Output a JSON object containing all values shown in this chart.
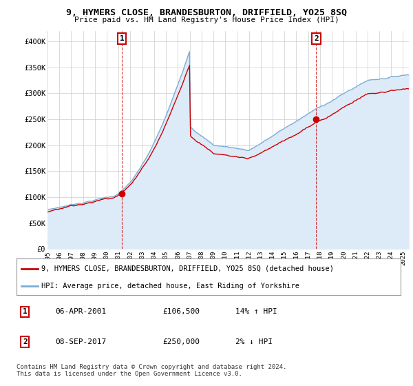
{
  "title": "9, HYMERS CLOSE, BRANDESBURTON, DRIFFIELD, YO25 8SQ",
  "subtitle": "Price paid vs. HM Land Registry's House Price Index (HPI)",
  "ylabel_ticks": [
    "£0",
    "£50K",
    "£100K",
    "£150K",
    "£200K",
    "£250K",
    "£300K",
    "£350K",
    "£400K"
  ],
  "ytick_values": [
    0,
    50000,
    100000,
    150000,
    200000,
    250000,
    300000,
    350000,
    400000
  ],
  "ylim": [
    0,
    420000
  ],
  "xlim_start": 1995.0,
  "xlim_end": 2025.5,
  "xticks": [
    1995,
    1996,
    1997,
    1998,
    1999,
    2000,
    2001,
    2002,
    2003,
    2004,
    2005,
    2006,
    2007,
    2008,
    2009,
    2010,
    2011,
    2012,
    2013,
    2014,
    2015,
    2016,
    2017,
    2018,
    2019,
    2020,
    2021,
    2022,
    2023,
    2024,
    2025
  ],
  "sale1_x": 2001.27,
  "sale1_y": 106500,
  "sale1_label": "1",
  "sale2_x": 2017.68,
  "sale2_y": 250000,
  "sale2_label": "2",
  "sale_color": "#cc0000",
  "hpi_color": "#7aadd4",
  "hpi_fill_color": "#ddeaf7",
  "legend_sale_label": "9, HYMERS CLOSE, BRANDESBURTON, DRIFFIELD, YO25 8SQ (detached house)",
  "legend_hpi_label": "HPI: Average price, detached house, East Riding of Yorkshire",
  "info1_num": "1",
  "info1_date": "06-APR-2001",
  "info1_price": "£106,500",
  "info1_hpi": "14% ↑ HPI",
  "info2_num": "2",
  "info2_date": "08-SEP-2017",
  "info2_price": "£250,000",
  "info2_hpi": "2% ↓ HPI",
  "footer": "Contains HM Land Registry data © Crown copyright and database right 2024.\nThis data is licensed under the Open Government Licence v3.0.",
  "background_color": "#ffffff",
  "grid_color": "#cccccc"
}
